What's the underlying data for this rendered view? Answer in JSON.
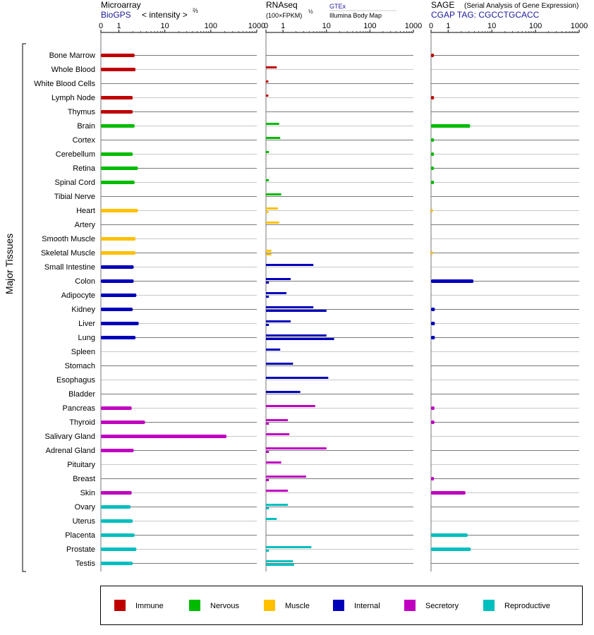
{
  "panels": {
    "microarray": {
      "title": "Microarray",
      "source": "BioGPS",
      "scale_label": "< intensity >",
      "scale_exp": "⅔"
    },
    "rnaseq": {
      "title": "RNAseq",
      "scale_label": "(100×FPKM)",
      "scale_exp": "½",
      "source_a": "GTEx",
      "source_b": "Illumina Body Map"
    },
    "sage": {
      "title": "SAGE",
      "subtitle": "(Serial Analysis of Gene Expression)",
      "tag_line": "CGAP  TAG: CGCCTGCACC"
    }
  },
  "y_group_label": "Major Tissues",
  "chart_data": {
    "type": "bar",
    "orientation": "horizontal",
    "xscale": "log",
    "xlim": [
      0,
      1000
    ],
    "xticks": [
      "0",
      "1",
      "10",
      "100",
      "1000"
    ],
    "categories": [
      "Bone Marrow",
      "Whole Blood",
      "White Blood Cells",
      "Lymph Node",
      "Thymus",
      "Brain",
      "Cortex",
      "Cerebellum",
      "Retina",
      "Spinal Cord",
      "Tibial Nerve",
      "Heart",
      "Artery",
      "Smooth Muscle",
      "Skeletal Muscle",
      "Small Intestine",
      "Colon",
      "Adipocyte",
      "Kidney",
      "Liver",
      "Lung",
      "Spleen",
      "Stomach",
      "Esophagus",
      "Bladder",
      "Pancreas",
      "Thyroid",
      "Salivary Gland",
      "Adrenal Gland",
      "Pituitary",
      "Breast",
      "Skin",
      "Ovary",
      "Uterus",
      "Placenta",
      "Prostate",
      "Testis"
    ],
    "category_system": [
      "Immune",
      "Immune",
      "Immune",
      "Immune",
      "Immune",
      "Nervous",
      "Nervous",
      "Nervous",
      "Nervous",
      "Nervous",
      "Nervous",
      "Muscle",
      "Muscle",
      "Muscle",
      "Muscle",
      "Internal",
      "Internal",
      "Internal",
      "Internal",
      "Internal",
      "Internal",
      "Internal",
      "Internal",
      "Internal",
      "Internal",
      "Secretory",
      "Secretory",
      "Secretory",
      "Secretory",
      "Secretory",
      "Secretory",
      "Secretory",
      "Reproductive",
      "Reproductive",
      "Reproductive",
      "Reproductive",
      "Reproductive"
    ],
    "series": [
      {
        "name": "Microarray",
        "values": [
          2.2,
          2.3,
          null,
          2.0,
          2.0,
          2.2,
          null,
          2.0,
          2.6,
          2.2,
          null,
          2.6,
          null,
          2.3,
          2.3,
          2.1,
          2.1,
          2.4,
          2.0,
          2.7,
          2.3,
          null,
          null,
          null,
          null,
          1.9,
          3.7,
          220,
          2.1,
          null,
          null,
          1.9,
          1.8,
          2.0,
          2.2,
          2.4,
          2.0
        ]
      },
      {
        "name": "GTEx",
        "values": [
          null,
          0.4,
          0.02,
          0.02,
          null,
          0.6,
          0.7,
          0.03,
          null,
          0.03,
          0.8,
          0.5,
          0.6,
          null,
          0.1,
          5.0,
          1.5,
          1.2,
          5.0,
          1.5,
          10,
          0.7,
          1.7,
          11,
          2.5,
          5.5,
          1.3,
          1.4,
          10,
          0.8,
          3.4,
          1.3,
          1.3,
          0.4,
          null,
          4.5,
          1.7
        ]
      },
      {
        "name": "Illumina Body Map",
        "values": [
          null,
          null,
          null,
          null,
          null,
          null,
          null,
          null,
          null,
          null,
          null,
          0.02,
          null,
          null,
          0.1,
          null,
          0.03,
          0.03,
          10,
          0.03,
          15,
          null,
          null,
          null,
          null,
          null,
          0.03,
          null,
          0.03,
          null,
          0.03,
          null,
          0.03,
          null,
          null,
          0.03,
          1.8
        ]
      },
      {
        "name": "SAGE",
        "values": [
          0.03,
          null,
          null,
          0.03,
          null,
          3.2,
          0.03,
          0.03,
          0.03,
          0.03,
          null,
          0.01,
          null,
          null,
          0.01,
          null,
          3.8,
          null,
          0.05,
          0.05,
          0.05,
          null,
          null,
          null,
          null,
          0.04,
          0.04,
          null,
          null,
          null,
          0.03,
          2.5,
          null,
          null,
          2.8,
          3.3,
          null
        ]
      }
    ],
    "legend": [
      "Immune",
      "Nervous",
      "Muscle",
      "Internal",
      "Secretory",
      "Reproductive"
    ],
    "legend_placement": "bottom",
    "colors": {
      "Immune": "#c00000",
      "Nervous": "#00bb00",
      "Muscle": "#ffc000",
      "Internal": "#0000bb",
      "Secretory": "#c000c0",
      "Reproductive": "#00bfbf"
    }
  }
}
